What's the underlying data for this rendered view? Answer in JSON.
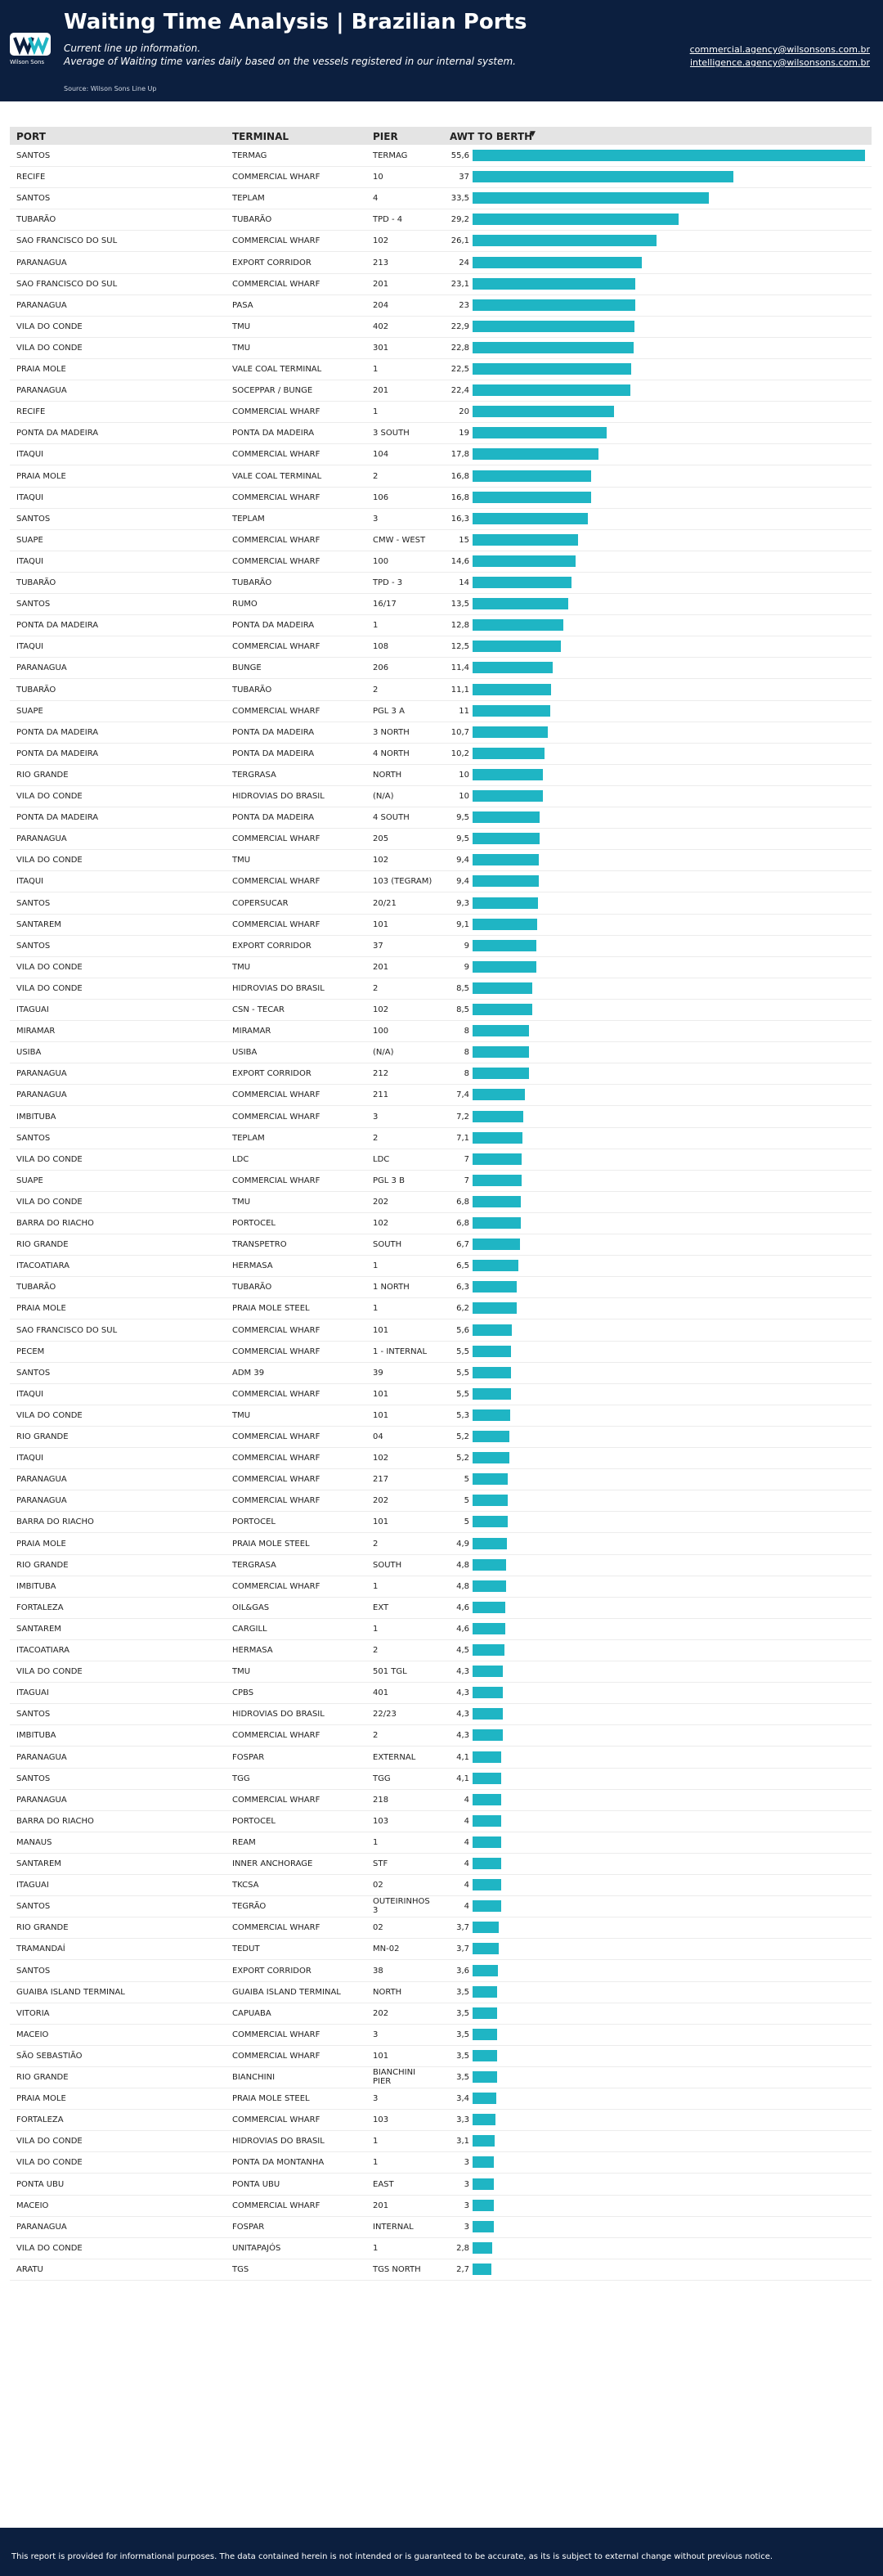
{
  "header": {
    "title": "Waiting Time Analysis | Brazilian Ports",
    "logo_text": "Wilson Sons",
    "subtitle": [
      "Current line up information.",
      "Average of Waiting time varies daily based on the vessels registered in our internal system."
    ],
    "source": "Source: Wilson Sons Line Up",
    "emails": [
      "commercial.agency@wilsonsons.com.br",
      "intelligence.agency@wilsonsons.com.br"
    ]
  },
  "table": {
    "columns": [
      "PORT",
      "TERMINAL",
      "PIER",
      "AWT TO BERTH"
    ],
    "bar_color": "#1fb5c4",
    "rows": [
      [
        "SANTOS",
        "TERMAG",
        "TERMAG"
      ],
      [
        "RECIFE",
        "COMMERCIAL WHARF",
        "10"
      ],
      [
        "SANTOS",
        "TEPLAM",
        "4"
      ],
      [
        "TUBARÃO",
        "TUBARÃO",
        "TPD - 4"
      ],
      [
        "SAO FRANCISCO DO SUL",
        "COMMERCIAL WHARF",
        "102"
      ],
      [
        "PARANAGUA",
        "EXPORT CORRIDOR",
        "213"
      ],
      [
        "SAO FRANCISCO DO SUL",
        "COMMERCIAL WHARF",
        "201"
      ],
      [
        "PARANAGUA",
        "PASA",
        "204"
      ],
      [
        "VILA DO CONDE",
        "TMU",
        "402"
      ],
      [
        "VILA DO CONDE",
        "TMU",
        "301"
      ],
      [
        "PRAIA MOLE",
        "VALE COAL TERMINAL",
        "1"
      ],
      [
        "PARANAGUA",
        "SOCEPPAR / BUNGE",
        "201"
      ],
      [
        "RECIFE",
        "COMMERCIAL WHARF",
        "1"
      ],
      [
        "PONTA DA MADEIRA",
        "PONTA DA MADEIRA",
        "3 SOUTH"
      ],
      [
        "ITAQUI",
        "COMMERCIAL WHARF",
        "104"
      ],
      [
        "PRAIA MOLE",
        "VALE COAL TERMINAL",
        "2"
      ],
      [
        "ITAQUI",
        "COMMERCIAL WHARF",
        "106"
      ],
      [
        "SANTOS",
        "TEPLAM",
        "3"
      ],
      [
        "SUAPE",
        "COMMERCIAL WHARF",
        "CMW - WEST"
      ],
      [
        "ITAQUI",
        "COMMERCIAL WHARF",
        "100"
      ],
      [
        "TUBARÃO",
        "TUBARÃO",
        "TPD - 3"
      ],
      [
        "SANTOS",
        "RUMO",
        "16/17"
      ],
      [
        "PONTA DA MADEIRA",
        "PONTA DA MADEIRA",
        "1"
      ],
      [
        "ITAQUI",
        "COMMERCIAL WHARF",
        "108"
      ],
      [
        "PARANAGUA",
        "BUNGE",
        "206"
      ],
      [
        "TUBARÃO",
        "TUBARÃO",
        "2"
      ],
      [
        "SUAPE",
        "COMMERCIAL WHARF",
        "PGL 3 A"
      ],
      [
        "PONTA DA MADEIRA",
        "PONTA DA MADEIRA",
        "3 NORTH"
      ],
      [
        "PONTA DA MADEIRA",
        "PONTA DA MADEIRA",
        "4 NORTH"
      ],
      [
        "RIO GRANDE",
        "TERGRASA",
        "NORTH"
      ],
      [
        "VILA DO CONDE",
        "HIDROVIAS DO BRASIL",
        "(N/A)"
      ],
      [
        "PONTA DA MADEIRA",
        "PONTA DA MADEIRA",
        "4 SOUTH"
      ],
      [
        "PARANAGUA",
        "COMMERCIAL WHARF",
        "205"
      ],
      [
        "VILA DO CONDE",
        "TMU",
        "102"
      ],
      [
        "ITAQUI",
        "COMMERCIAL WHARF",
        "103 (TEGRAM)"
      ],
      [
        "SANTOS",
        "COPERSUCAR",
        "20/21"
      ],
      [
        "SANTAREM",
        "COMMERCIAL WHARF",
        "101"
      ],
      [
        "SANTOS",
        "EXPORT CORRIDOR",
        "37"
      ],
      [
        "VILA DO CONDE",
        "TMU",
        "201"
      ],
      [
        "VILA DO CONDE",
        "HIDROVIAS DO BRASIL",
        "2"
      ],
      [
        "ITAGUAI",
        "CSN - TECAR",
        "102"
      ],
      [
        "MIRAMAR",
        "MIRAMAR",
        "100"
      ],
      [
        "USIBA",
        "USIBA",
        "(N/A)"
      ],
      [
        "PARANAGUA",
        "EXPORT CORRIDOR",
        "212"
      ],
      [
        "PARANAGUA",
        "COMMERCIAL WHARF",
        "211"
      ],
      [
        "IMBITUBA",
        "COMMERCIAL WHARF",
        "3"
      ],
      [
        "SANTOS",
        "TEPLAM",
        "2"
      ],
      [
        "VILA DO CONDE",
        "LDC",
        "LDC"
      ],
      [
        "SUAPE",
        "COMMERCIAL WHARF",
        "PGL 3 B"
      ],
      [
        "VILA DO CONDE",
        "TMU",
        "202"
      ],
      [
        "BARRA DO RIACHO",
        "PORTOCEL",
        "102"
      ],
      [
        "RIO GRANDE",
        "TRANSPETRO",
        "SOUTH"
      ],
      [
        "ITACOATIARA",
        "HERMASA",
        "1"
      ],
      [
        "TUBARÃO",
        "TUBARÃO",
        "1 NORTH"
      ],
      [
        "PRAIA MOLE",
        "PRAIA MOLE STEEL",
        "1"
      ],
      [
        "SAO FRANCISCO DO SUL",
        "COMMERCIAL WHARF",
        "101"
      ],
      [
        "PECEM",
        "COMMERCIAL WHARF",
        "1 - INTERNAL"
      ],
      [
        "SANTOS",
        "ADM 39",
        "39"
      ],
      [
        "ITAQUI",
        "COMMERCIAL WHARF",
        "101"
      ],
      [
        "VILA DO CONDE",
        "TMU",
        "101"
      ],
      [
        "RIO GRANDE",
        "COMMERCIAL WHARF",
        "04"
      ],
      [
        "ITAQUI",
        "COMMERCIAL WHARF",
        "102"
      ],
      [
        "PARANAGUA",
        "COMMERCIAL WHARF",
        "217"
      ],
      [
        "PARANAGUA",
        "COMMERCIAL WHARF",
        "202"
      ],
      [
        "BARRA DO RIACHO",
        "PORTOCEL",
        "101"
      ],
      [
        "PRAIA MOLE",
        "PRAIA MOLE STEEL",
        "2"
      ],
      [
        "RIO GRANDE",
        "TERGRASA",
        "SOUTH"
      ],
      [
        "IMBITUBA",
        "COMMERCIAL WHARF",
        "1"
      ],
      [
        "FORTALEZA",
        "OIL&GAS",
        "EXT"
      ],
      [
        "SANTAREM",
        "CARGILL",
        "1"
      ],
      [
        "ITACOATIARA",
        "HERMASA",
        "2"
      ],
      [
        "VILA DO CONDE",
        "TMU",
        "501 TGL"
      ],
      [
        "ITAGUAI",
        "CPBS",
        "401"
      ],
      [
        "SANTOS",
        "HIDROVIAS DO BRASIL",
        "22/23"
      ],
      [
        "IMBITUBA",
        "COMMERCIAL WHARF",
        "2"
      ],
      [
        "PARANAGUA",
        "FOSPAR",
        "EXTERNAL"
      ],
      [
        "SANTOS",
        "TGG",
        "TGG"
      ],
      [
        "PARANAGUA",
        "COMMERCIAL WHARF",
        "218"
      ],
      [
        "BARRA DO RIACHO",
        "PORTOCEL",
        "103"
      ],
      [
        "MANAUS",
        "REAM",
        "1"
      ],
      [
        "SANTAREM",
        "INNER ANCHORAGE",
        "STF"
      ],
      [
        "ITAGUAI",
        "TKCSA",
        "02"
      ],
      [
        "SANTOS",
        "TEGRÃO",
        "OUTEIRINHOS 3"
      ],
      [
        "RIO GRANDE",
        "COMMERCIAL WHARF",
        "02"
      ],
      [
        "TRAMANDAÍ",
        "TEDUT",
        "MN-02"
      ],
      [
        "SANTOS",
        "EXPORT CORRIDOR",
        "38"
      ],
      [
        "GUAIBA ISLAND TERMINAL",
        "GUAIBA ISLAND TERMINAL",
        "NORTH"
      ],
      [
        "VITORIA",
        "CAPUABA",
        "202"
      ],
      [
        "MACEIO",
        "COMMERCIAL WHARF",
        "3"
      ],
      [
        "SÃO SEBASTIÃO",
        "COMMERCIAL WHARF",
        "101"
      ],
      [
        "RIO GRANDE",
        "BIANCHINI",
        "BIANCHINI PIER"
      ],
      [
        "PRAIA MOLE",
        "PRAIA MOLE STEEL",
        "3"
      ],
      [
        "FORTALEZA",
        "COMMERCIAL WHARF",
        "103"
      ],
      [
        "VILA DO CONDE",
        "HIDROVIAS DO BRASIL",
        "1"
      ],
      [
        "VILA DO CONDE",
        "PONTA DA MONTANHA",
        "1"
      ],
      [
        "PONTA UBU",
        "PONTA UBU",
        "EAST"
      ],
      [
        "MACEIO",
        "COMMERCIAL WHARF",
        "201"
      ],
      [
        "PARANAGUA",
        "FOSPAR",
        "INTERNAL"
      ],
      [
        "VILA DO CONDE",
        "UNITAPAJÓS",
        "1"
      ],
      [
        "ARATU",
        "TGS",
        "TGS NORTH"
      ]
    ],
    "values": [
      55.6,
      37,
      33.5,
      29.2,
      26.1,
      24,
      23.1,
      23,
      22.9,
      22.8,
      22.5,
      22.4,
      20,
      19,
      17.8,
      16.8,
      16.8,
      16.3,
      15,
      14.6,
      14,
      13.5,
      12.8,
      12.5,
      11.4,
      11.1,
      11,
      10.7,
      10.2,
      10,
      10,
      9.5,
      9.5,
      9.4,
      9.4,
      9.3,
      9.1,
      9,
      9,
      8.5,
      8.5,
      8,
      8,
      8,
      7.4,
      7.2,
      7.1,
      7,
      7,
      6.8,
      6.8,
      6.7,
      6.5,
      6.3,
      6.2,
      5.6,
      5.5,
      5.5,
      5.5,
      5.3,
      5.2,
      5.2,
      5,
      5,
      5,
      4.9,
      4.8,
      4.8,
      4.6,
      4.6,
      4.5,
      4.3,
      4.3,
      4.3,
      4.3,
      4.1,
      4.1,
      4,
      4,
      4,
      4,
      4,
      4,
      3.7,
      3.7,
      3.6,
      3.5,
      3.5,
      3.5,
      3.5,
      3.5,
      3.4,
      3.3,
      3.1,
      3,
      3,
      3,
      3,
      2.8,
      2.7
    ],
    "value_labels": [
      "55,6",
      "37",
      "33,5",
      "29,2",
      "26,1",
      "24",
      "23,1",
      "23",
      "22,9",
      "22,8",
      "22,5",
      "22,4",
      "20",
      "19",
      "17,8",
      "16,8",
      "16,8",
      "16,3",
      "15",
      "14,6",
      "14",
      "13,5",
      "12,8",
      "12,5",
      "11,4",
      "11,1",
      "11",
      "10,7",
      "10,2",
      "10",
      "10",
      "9,5",
      "9,5",
      "9,4",
      "9,4",
      "9,3",
      "9,1",
      "9",
      "9",
      "8,5",
      "8,5",
      "8",
      "8",
      "8",
      "7,4",
      "7,2",
      "7,1",
      "7",
      "7",
      "6,8",
      "6,8",
      "6,7",
      "6,5",
      "6,3",
      "6,2",
      "5,6",
      "5,5",
      "5,5",
      "5,5",
      "5,3",
      "5,2",
      "5,2",
      "5",
      "5",
      "5",
      "4,9",
      "4,8",
      "4,8",
      "4,6",
      "4,6",
      "4,5",
      "4,3",
      "4,3",
      "4,3",
      "4,3",
      "4,1",
      "4,1",
      "4",
      "4",
      "4",
      "4",
      "4",
      "4",
      "3,7",
      "3,7",
      "3,6",
      "3,5",
      "3,5",
      "3,5",
      "3,5",
      "3,5",
      "3,4",
      "3,3",
      "3,1",
      "3",
      "3",
      "3",
      "3",
      "2,8",
      "2,7"
    ]
  },
  "footer": {
    "disclaimer": "This report is provided for informational purposes. The data contained herein is not intended or is guaranteed to be accurate, as its is subject to external change without previous notice."
  }
}
